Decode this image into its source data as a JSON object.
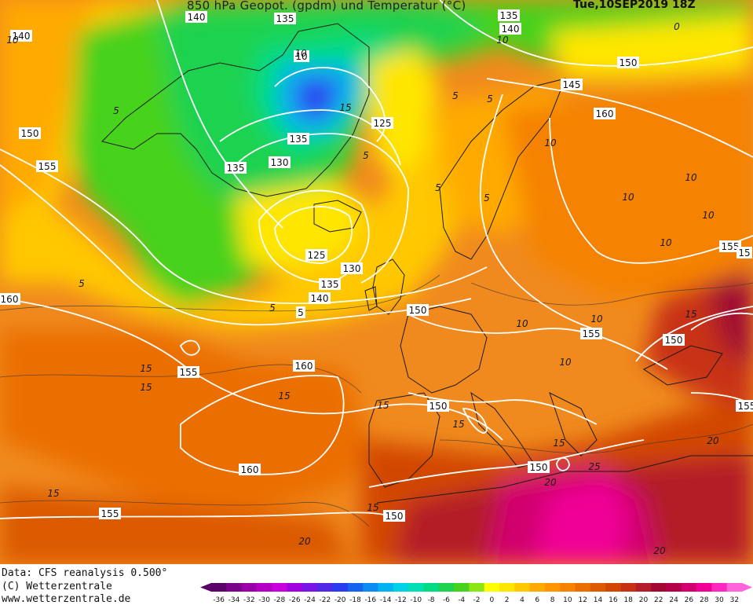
{
  "header": {
    "title": "850 hPa Geopot. (gpdm) und Temperatur (°C)",
    "datetime": "Tue,10SEP2019 18Z"
  },
  "footer": {
    "data_source": "Data: CFS reanalysis 0.500°",
    "copyright": "(C) Wetterzentrale",
    "website": "www.wetterzentrale.de"
  },
  "legend": {
    "ticks": [
      "-36",
      "-34",
      "-32",
      "-30",
      "-28",
      "-26",
      "-24",
      "-22",
      "-20",
      "-18",
      "-16",
      "-14",
      "-12",
      "-10",
      "-8",
      "-6",
      "-4",
      "-2",
      "0",
      "2",
      "4",
      "6",
      "8",
      "10",
      "12",
      "14",
      "16",
      "18",
      "20",
      "22",
      "24",
      "26",
      "28",
      "30",
      "32"
    ],
    "colors": [
      "#5a0068",
      "#7a008a",
      "#9a00a8",
      "#b400c4",
      "#c800dc",
      "#a000e0",
      "#7a14e6",
      "#5028e6",
      "#2a3cf0",
      "#1464f0",
      "#0a8cf0",
      "#00b4f0",
      "#00d2e6",
      "#00e0b4",
      "#00dc82",
      "#1ed250",
      "#46d21e",
      "#8ce614",
      "#ffff00",
      "#ffe600",
      "#ffc800",
      "#ffaa00",
      "#ff9600",
      "#f58200",
      "#eb6e00",
      "#dc5a00",
      "#d24600",
      "#c83214",
      "#b41e28",
      "#a00a32",
      "#b4004b",
      "#d2006e",
      "#f00096",
      "#ff28be",
      "#ff64dc"
    ]
  },
  "isohypse_labels": [
    "140",
    "135",
    "135",
    "140",
    "140",
    "150",
    "145",
    "150",
    "155",
    "160",
    "155",
    "10",
    "135",
    "130",
    "135",
    "125",
    "125",
    "130",
    "135",
    "140",
    "150",
    "5",
    "160",
    "155",
    "160",
    "150",
    "150",
    "150",
    "155",
    "160",
    "155",
    "150",
    "155",
    "15"
  ],
  "temperature_labels": [
    "10",
    "10",
    "10",
    "5",
    "5",
    "5",
    "5",
    "15",
    "5",
    "5",
    "5",
    "10",
    "10",
    "10",
    "10",
    "15",
    "15",
    "15",
    "15",
    "15",
    "15",
    "15",
    "20",
    "20",
    "20",
    "25",
    "20",
    "0",
    "15",
    "10",
    "10",
    "10",
    "10",
    "5",
    "15"
  ]
}
